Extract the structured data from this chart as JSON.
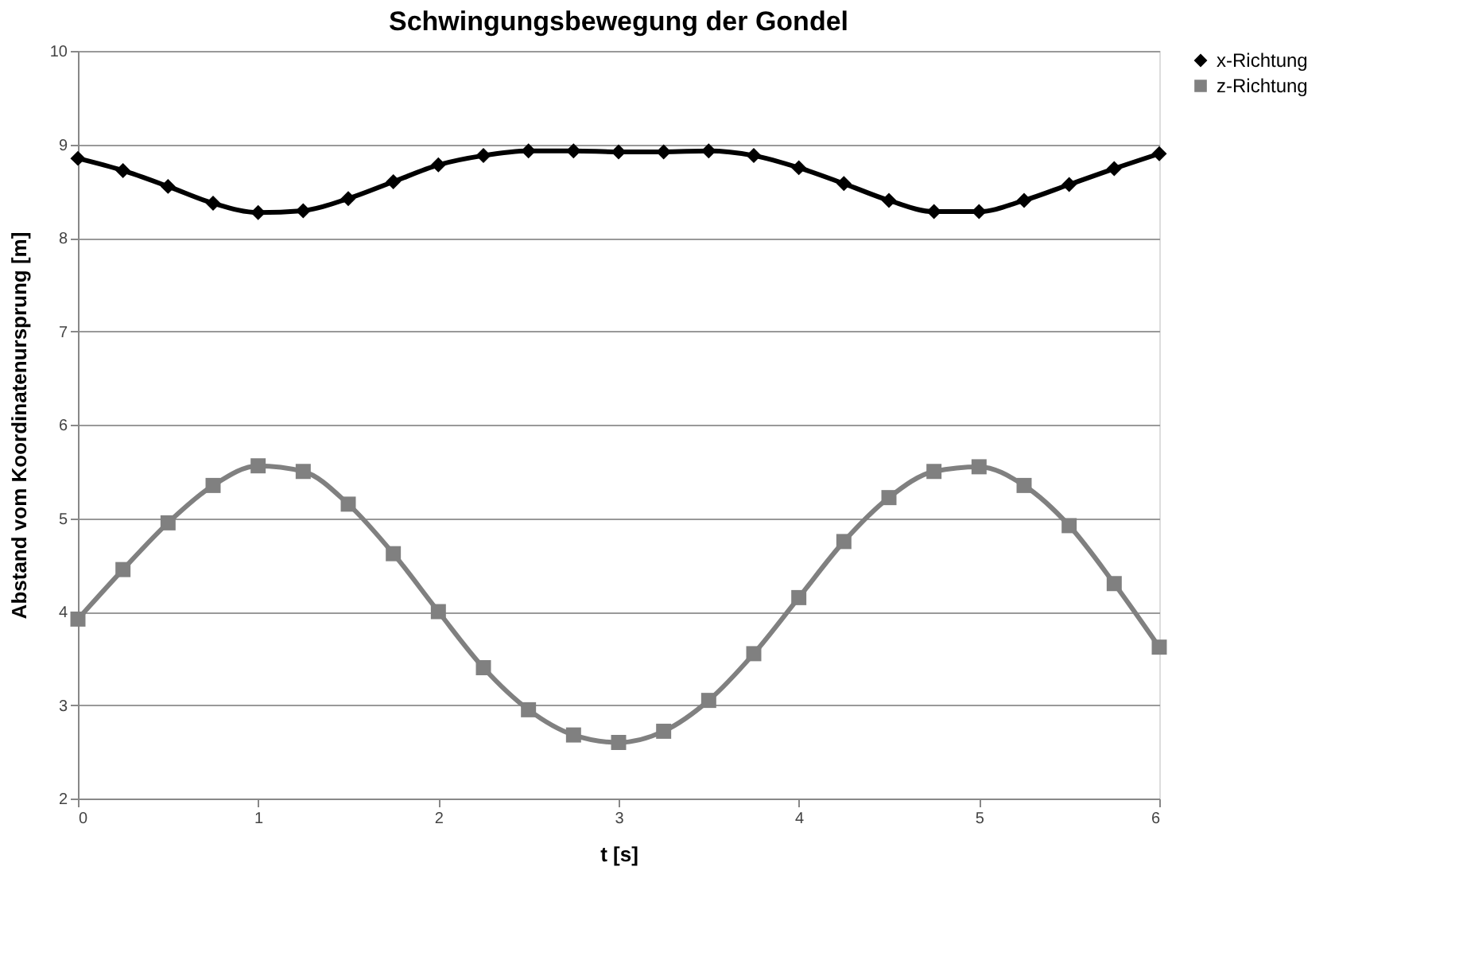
{
  "chart_data": {
    "type": "line",
    "title": "Schwingungsbewegung der Gondel",
    "xlabel": "t [s]",
    "ylabel": "Abstand vom Koordinatenursprung  [m]",
    "x": [
      0,
      0.25,
      0.5,
      0.75,
      1.0,
      1.25,
      1.5,
      1.75,
      2.0,
      2.25,
      2.5,
      2.75,
      3.0,
      3.25,
      3.5,
      3.75,
      4.0,
      4.25,
      4.5,
      4.75,
      5.0,
      5.25,
      5.5,
      5.75,
      6.0
    ],
    "series": [
      {
        "name": "x-Richtung",
        "color": "#000000",
        "marker": "diamond",
        "values": [
          8.85,
          8.72,
          8.55,
          8.37,
          8.27,
          8.29,
          8.42,
          8.6,
          8.78,
          8.88,
          8.93,
          8.93,
          8.92,
          8.92,
          8.93,
          8.88,
          8.75,
          8.58,
          8.4,
          8.28,
          8.28,
          8.4,
          8.57,
          8.74,
          8.9
        ]
      },
      {
        "name": "z-Richtung",
        "color": "#808080",
        "marker": "square",
        "values": [
          3.92,
          4.45,
          4.95,
          5.35,
          5.56,
          5.5,
          5.15,
          4.62,
          4.0,
          3.4,
          2.95,
          2.68,
          2.6,
          2.72,
          3.05,
          3.55,
          4.15,
          4.75,
          5.22,
          5.5,
          5.55,
          5.35,
          4.92,
          4.3,
          3.62
        ]
      }
    ],
    "xlim": [
      0,
      6
    ],
    "xticks": [
      0,
      1,
      2,
      3,
      4,
      5,
      6
    ],
    "ylim": [
      2,
      10
    ],
    "yticks": [
      2,
      3,
      4,
      5,
      6,
      7,
      8,
      9,
      10
    ],
    "grid": "y",
    "legend": "right",
    "line_style": "solid"
  }
}
